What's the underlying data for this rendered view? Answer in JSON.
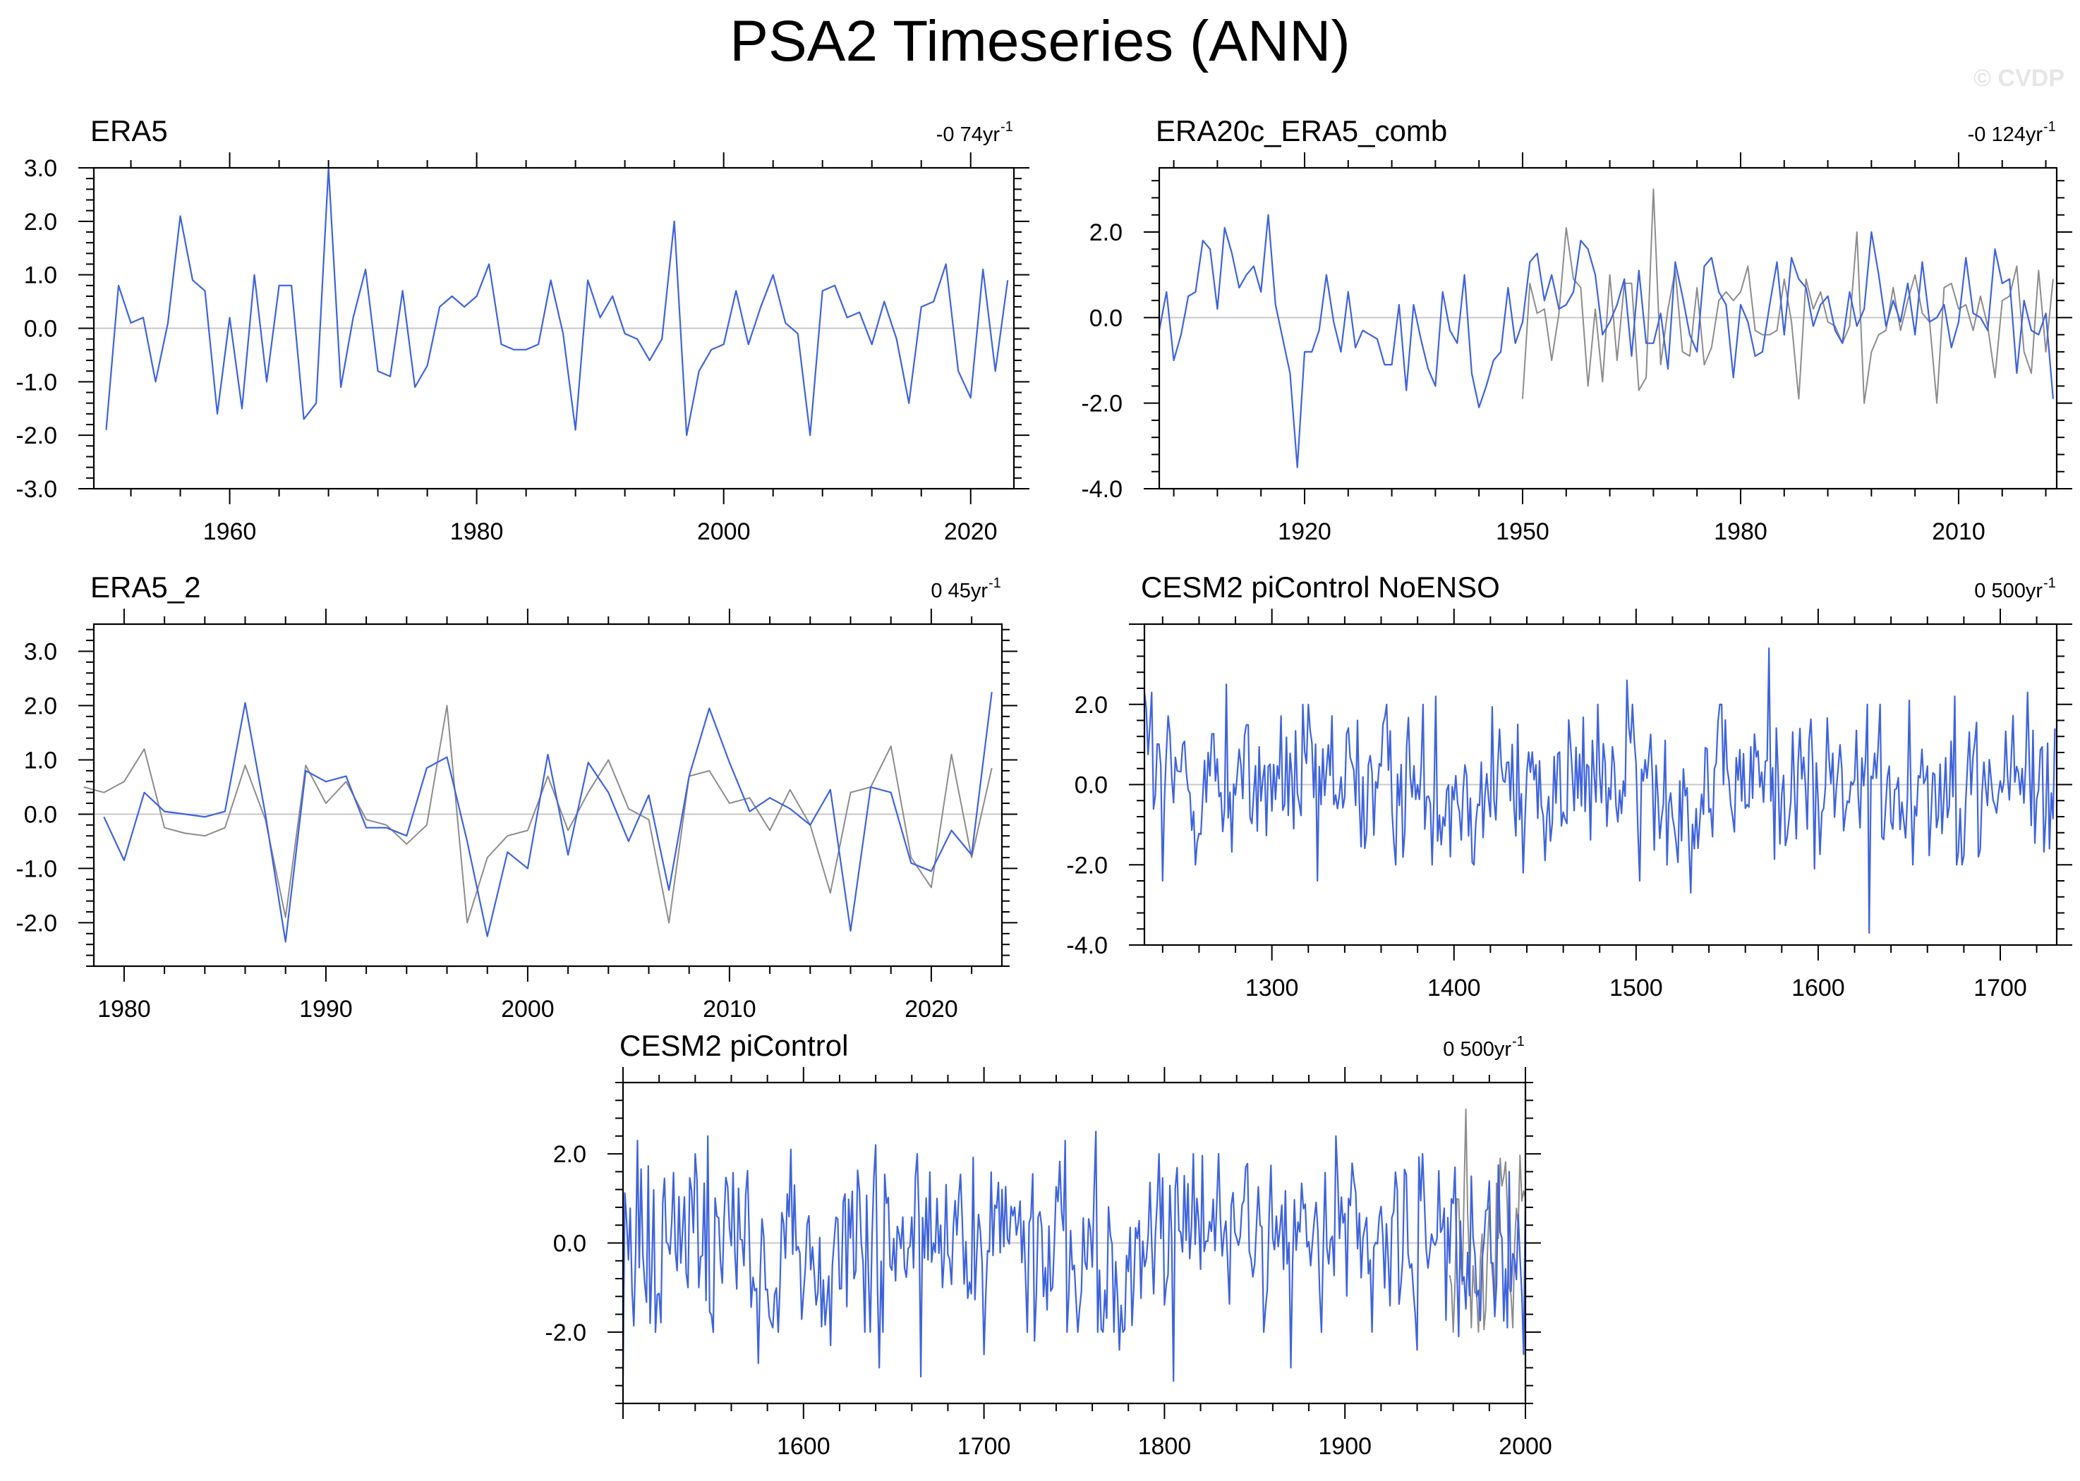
{
  "figure": {
    "title": "PSA2 Timeseries (ANN)",
    "watermark": "© CVDP",
    "colors": {
      "primary": "#3e63dd",
      "secondary": "#8c8c8c",
      "zero": "#c8c8c8",
      "axis": "#000000"
    }
  },
  "chart_data": [
    {
      "type": "line",
      "title": "ERA5",
      "trend": "-0 74yr",
      "trend_exp": "-1",
      "xlim": [
        1949,
        2023.5
      ],
      "ylim": [
        -3.0,
        3.0
      ],
      "xticks": [
        1960,
        1980,
        2000,
        2020
      ],
      "xtick_labels": [
        "1960",
        "1980",
        "2000",
        "2020"
      ],
      "yticks": [
        -3.0,
        -2.0,
        -1.0,
        0.0,
        1.0,
        2.0,
        3.0
      ],
      "ytick_labels": [
        "-3.0",
        "-2.0",
        "-1.0",
        "0.0",
        "1.0",
        "2.0",
        "3.0"
      ],
      "series": [
        {
          "name": "ERA5",
          "color": "#3e63dd",
          "start": 1950,
          "values": [
            -1.9,
            0.8,
            0.1,
            0.2,
            -1.0,
            0.1,
            2.1,
            0.9,
            0.7,
            -1.6,
            0.2,
            -1.5,
            1.0,
            -1.0,
            0.8,
            0.8,
            -1.7,
            -1.4,
            3.0,
            -1.1,
            0.2,
            1.1,
            -0.8,
            -0.9,
            0.7,
            -1.1,
            -0.7,
            0.4,
            0.6,
            0.4,
            0.6,
            1.2,
            -0.3,
            -0.4,
            -0.4,
            -0.3,
            0.9,
            -0.1,
            -1.9,
            0.9,
            0.2,
            0.6,
            -0.1,
            -0.2,
            -0.6,
            -0.2,
            2.0,
            -2.0,
            -0.8,
            -0.4,
            -0.3,
            0.7,
            -0.3,
            0.4,
            1.0,
            0.1,
            -0.1,
            -2.0,
            0.7,
            0.8,
            0.2,
            0.3,
            -0.3,
            0.5,
            -0.2,
            -1.4,
            0.4,
            0.5,
            1.2,
            -0.8,
            -1.3,
            1.1,
            -0.8,
            0.9
          ]
        }
      ]
    },
    {
      "type": "line",
      "title": "ERA20c_ERA5_comb",
      "trend": "-0 124yr",
      "trend_exp": "-1",
      "xlim": [
        1900,
        2023.5
      ],
      "ylim": [
        -4.0,
        3.5
      ],
      "xticks": [
        1920,
        1950,
        1980,
        2010
      ],
      "xtick_labels": [
        "1920",
        "1950",
        "1980",
        "2010"
      ],
      "yticks": [
        -4.0,
        -2.0,
        0.0,
        2.0
      ],
      "ytick_labels": [
        "-4.0",
        "-2.0",
        "0.0",
        "2.0"
      ],
      "series": [
        {
          "name": "ERA20c_ERA5_comb",
          "color": "#3e63dd",
          "start": 1900,
          "values": [
            -0.3,
            0.6,
            -1.0,
            -0.4,
            0.5,
            0.6,
            1.8,
            1.6,
            0.2,
            2.1,
            1.5,
            0.7,
            1.0,
            1.2,
            0.6,
            2.4,
            0.3,
            -0.5,
            -1.3,
            -3.5,
            -0.8,
            -0.8,
            -0.3,
            1.0,
            -0.1,
            -0.8,
            0.6,
            -0.7,
            -0.3,
            -0.4,
            -0.5,
            -1.1,
            -1.1,
            0.3,
            -1.7,
            0.3,
            -0.5,
            -1.2,
            -1.6,
            0.6,
            -0.3,
            -0.6,
            1.0,
            -1.3,
            -2.1,
            -1.6,
            -1.0,
            -0.8,
            0.7,
            -0.6,
            -0.1,
            1.3,
            1.5,
            0.4,
            1.0,
            0.2,
            0.3,
            0.6,
            1.8,
            1.6,
            1.0,
            -0.4,
            -0.1,
            0.3,
            0.9,
            -0.9,
            1.1,
            -0.6,
            -0.6,
            0.1,
            -1.2,
            1.3,
            0.5,
            -0.4,
            -0.8,
            1.2,
            1.4,
            0.6,
            0.3,
            -1.4,
            0.3,
            -0.1,
            -0.9,
            -0.8,
            0.3,
            1.3,
            -0.4,
            1.4,
            0.9,
            0.7,
            -0.2,
            0.3,
            0.5,
            -0.3,
            -0.6,
            0.6,
            -0.2,
            0.2,
            2.0,
            1.0,
            -0.2,
            0.4,
            -0.1,
            0.8,
            -0.4,
            1.3,
            -0.1,
            0.0,
            0.3,
            -0.7,
            -0.1,
            1.4,
            0.1,
            0.0,
            -0.3,
            1.6,
            0.8,
            0.9,
            -1.3,
            0.4,
            -0.3,
            -0.4,
            0.1,
            -1.9
          ]
        },
        {
          "name": "ERA5",
          "color": "#8c8c8c",
          "start": 1950,
          "values": [
            -1.9,
            0.8,
            0.1,
            0.2,
            -1.0,
            0.1,
            2.1,
            0.9,
            0.7,
            -1.6,
            0.2,
            -1.5,
            1.0,
            -1.0,
            0.8,
            0.8,
            -1.7,
            -1.4,
            3.0,
            -1.1,
            0.2,
            1.1,
            -0.8,
            -0.9,
            0.7,
            -1.1,
            -0.7,
            0.4,
            0.6,
            0.4,
            0.6,
            1.2,
            -0.3,
            -0.4,
            -0.4,
            -0.3,
            0.9,
            -0.1,
            -1.9,
            0.9,
            0.2,
            0.6,
            -0.1,
            -0.2,
            -0.6,
            -0.2,
            2.0,
            -2.0,
            -0.8,
            -0.4,
            -0.3,
            0.7,
            -0.3,
            0.4,
            1.0,
            0.1,
            -0.1,
            -2.0,
            0.7,
            0.8,
            0.2,
            0.3,
            -0.3,
            0.5,
            -0.2,
            -1.4,
            0.4,
            0.5,
            1.2,
            -0.8,
            -1.3,
            1.1,
            -0.8,
            0.9
          ]
        }
      ]
    },
    {
      "type": "line",
      "title": "ERA5_2",
      "trend": "0 45yr",
      "trend_exp": "-1",
      "xlim": [
        1978.5,
        2023.5
      ],
      "ylim": [
        -2.8,
        3.5
      ],
      "xticks": [
        1980,
        1990,
        2000,
        2010,
        2020
      ],
      "xtick_labels": [
        "1980",
        "1990",
        "2000",
        "2010",
        "2020"
      ],
      "yticks": [
        -2.0,
        -1.0,
        0.0,
        1.0,
        2.0,
        3.0
      ],
      "ytick_labels": [
        "-2.0",
        "-1.0",
        "0.0",
        "1.0",
        "2.0",
        "3.0"
      ],
      "series": [
        {
          "name": "ERA5_2",
          "color": "#3e63dd",
          "start": 1979,
          "values": [
            -0.05,
            -0.85,
            0.4,
            0.05,
            0.0,
            -0.05,
            0.05,
            2.05,
            0.0,
            -2.35,
            0.8,
            0.6,
            0.7,
            -0.25,
            -0.25,
            -0.4,
            0.85,
            1.05,
            -0.5,
            -2.25,
            -0.7,
            -1.0,
            1.1,
            -0.75,
            0.95,
            0.4,
            -0.5,
            0.35,
            -1.4,
            0.7,
            1.95,
            0.95,
            0.05,
            0.3,
            0.1,
            -0.2,
            0.45,
            -2.15,
            0.5,
            0.4,
            -0.9,
            -1.05,
            -0.3,
            -0.75,
            2.25
          ]
        },
        {
          "name": "ERA5",
          "color": "#8c8c8c",
          "start": 1978,
          "values": [
            0.5,
            0.4,
            0.6,
            1.2,
            -0.25,
            -0.35,
            -0.4,
            -0.25,
            0.9,
            -0.1,
            -1.9,
            0.9,
            0.2,
            0.6,
            -0.1,
            -0.2,
            -0.55,
            -0.2,
            2.0,
            -2.0,
            -0.8,
            -0.4,
            -0.3,
            0.7,
            -0.3,
            0.4,
            1.0,
            0.1,
            -0.1,
            -2.0,
            0.7,
            0.8,
            0.2,
            0.3,
            -0.3,
            0.45,
            -0.2,
            -1.45,
            0.4,
            0.5,
            1.25,
            -0.8,
            -1.35,
            1.1,
            -0.8,
            0.85
          ]
        }
      ]
    },
    {
      "type": "line",
      "title": "CESM2 piControl NoENSO",
      "trend": "0 500yr",
      "trend_exp": "-1",
      "xlim": [
        1230,
        1731
      ],
      "ylim": [
        -4.0,
        4.0
      ],
      "xticks": [
        1300,
        1400,
        1500,
        1600,
        1700
      ],
      "xtick_labels": [
        "1300",
        "1400",
        "1500",
        "1600",
        "1700"
      ],
      "yticks": [
        -4.0,
        -2.0,
        0.0,
        2.0
      ],
      "ytick_labels": [
        "-4.0",
        "-2.0",
        "0.0",
        "2.0"
      ],
      "series": [
        {
          "name": "CESM2 piControl NoENSO",
          "color": "#3e63dd",
          "start": 1230,
          "generated": true,
          "n": 501,
          "seed": 12345,
          "sd": 0.95,
          "fixed": {
            "0": 2.3,
            "1": 1.9,
            "4": 2.3,
            "10": -2.4,
            "45": 2.5,
            "95": -2.4,
            "160": 2.2,
            "208": -2.2,
            "265": 2.6,
            "272": -2.4,
            "300": -2.7,
            "343": 3.4,
            "368": -2.1,
            "398": -3.7,
            "420": 2.1,
            "445": 2.2,
            "458": -1.8,
            "485": 2.3,
            "497": -1.6,
            "500": 1.4
          }
        }
      ]
    },
    {
      "type": "line",
      "title": "CESM2 piControl",
      "trend": "0 500yr",
      "trend_exp": "-1",
      "xlim": [
        1500,
        2000
      ],
      "ylim": [
        -3.6,
        3.6
      ],
      "xticks": [
        1600,
        1700,
        1800,
        1900,
        2000
      ],
      "xtick_labels": [
        "1600",
        "1700",
        "1800",
        "1900",
        "2000"
      ],
      "yticks": [
        -2.0,
        0.0,
        2.0
      ],
      "ytick_labels": [
        "-2.0",
        "0.0",
        "2.0"
      ],
      "series": [
        {
          "name": "CESM2 piControl",
          "color": "#3e63dd",
          "start": 1500,
          "generated": true,
          "n": 501,
          "seed": 987,
          "sd": 0.95,
          "fixed": {
            "0": -3.0,
            "2": 0.5,
            "8": 2.3,
            "15": -1.8,
            "47": 2.4,
            "75": -2.7,
            "93": 2.1,
            "115": -2.3,
            "140": 2.2,
            "142": -2.8,
            "165": -3.0,
            "200": -2.5,
            "228": -2.2,
            "245": 2.3,
            "262": 2.5,
            "275": -2.4,
            "305": -3.1,
            "330": -2.1,
            "330.5": 2.0,
            "345": 1.7,
            "355": -2.0,
            "370": -2.8,
            "395": 2.4,
            "440": -2.4,
            "463": -2.1,
            "470": 1.5,
            "490": -1.9,
            "499": -2.5,
            "500": 1.0
          }
        },
        {
          "name": "ERA20c_ERA5_comb",
          "color": "#8c8c8c",
          "start": 1958,
          "generated": true,
          "n": 43,
          "seed": 55,
          "sd": 1.0,
          "fixed": {
            "9": 3.0,
            "12": -1.9,
            "20": -1.5,
            "28": 1.9,
            "35": -1.9,
            "42": 1.0
          }
        }
      ]
    }
  ]
}
